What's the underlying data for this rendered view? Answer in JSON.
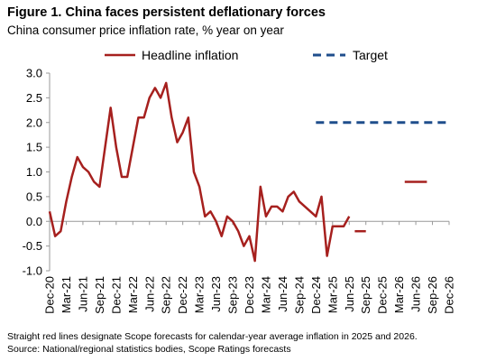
{
  "title": "Figure 1. China faces persistent deflationary forces",
  "subtitle": "China consumer price inflation rate, % year on year",
  "note": "Straight red lines designate Scope forecasts for calendar-year average inflation in 2025 and 2026.",
  "source": "Source: National/regional statistics bodies, Scope Ratings forecasts",
  "colors": {
    "headline": "#A6201E",
    "target": "#1F4E8C",
    "axis": "#999999"
  },
  "chart_data": {
    "type": "line",
    "ylim": [
      -1.0,
      3.0
    ],
    "yticks": [
      "3.0",
      "2.5",
      "2.0",
      "1.5",
      "1.0",
      "0.5",
      "0.0",
      "-0.5",
      "-1.0"
    ],
    "ytick_values": [
      3.0,
      2.5,
      2.0,
      1.5,
      1.0,
      0.5,
      0.0,
      -0.5,
      -1.0
    ],
    "xlim": [
      "2020-12",
      "2026-12"
    ],
    "xticks": [
      "Dec-20",
      "Mar-21",
      "Jun-21",
      "Sep-21",
      "Dec-21",
      "Mar-22",
      "Jun-22",
      "Sep-22",
      "Dec-22",
      "Mar-23",
      "Jun-23",
      "Sep-23",
      "Dec-23",
      "Mar-24",
      "Jun-24",
      "Sep-24",
      "Dec-24",
      "Mar-25",
      "Jun-25",
      "Sep-25",
      "Dec-25",
      "Mar-26",
      "Jun-26",
      "Sep-26",
      "Dec-26"
    ],
    "grid": false,
    "legend_position": "top",
    "series": [
      {
        "name": "Headline inflation",
        "style": "solid",
        "x": [
          "2020-12",
          "2021-01",
          "2021-02",
          "2021-03",
          "2021-04",
          "2021-05",
          "2021-06",
          "2021-07",
          "2021-08",
          "2021-09",
          "2021-10",
          "2021-11",
          "2021-12",
          "2022-01",
          "2022-02",
          "2022-03",
          "2022-04",
          "2022-05",
          "2022-06",
          "2022-07",
          "2022-08",
          "2022-09",
          "2022-10",
          "2022-11",
          "2022-12",
          "2023-01",
          "2023-02",
          "2023-03",
          "2023-04",
          "2023-05",
          "2023-06",
          "2023-07",
          "2023-08",
          "2023-09",
          "2023-10",
          "2023-11",
          "2023-12",
          "2024-01",
          "2024-02",
          "2024-03",
          "2024-04",
          "2024-05",
          "2024-06",
          "2024-07",
          "2024-08",
          "2024-09",
          "2024-10",
          "2024-11",
          "2024-12",
          "2025-01",
          "2025-02",
          "2025-03",
          "2025-04",
          "2025-05",
          "2025-06"
        ],
        "values": [
          0.2,
          -0.3,
          -0.2,
          0.4,
          0.9,
          1.3,
          1.1,
          1.0,
          0.8,
          0.7,
          1.5,
          2.3,
          1.5,
          0.9,
          0.9,
          1.5,
          2.1,
          2.1,
          2.5,
          2.7,
          2.5,
          2.8,
          2.1,
          1.6,
          1.8,
          2.1,
          1.0,
          0.7,
          0.1,
          0.2,
          0.0,
          -0.3,
          0.1,
          0.0,
          -0.2,
          -0.5,
          -0.3,
          -0.8,
          0.7,
          0.1,
          0.3,
          0.3,
          0.2,
          0.5,
          0.6,
          0.4,
          0.3,
          0.2,
          0.1,
          0.5,
          -0.7,
          -0.1,
          -0.1,
          -0.1,
          0.1
        ]
      },
      {
        "name": "",
        "style": "forecast",
        "x": [
          "2025-07",
          "2025-09"
        ],
        "values": [
          -0.2,
          -0.2
        ]
      },
      {
        "name": "",
        "style": "forecast",
        "x": [
          "2026-04",
          "2026-08"
        ],
        "values": [
          0.8,
          0.8
        ]
      },
      {
        "name": "Target",
        "style": "dashed",
        "x": [
          "2024-12",
          "2026-12"
        ],
        "values": [
          2.0,
          2.0
        ]
      }
    ]
  }
}
